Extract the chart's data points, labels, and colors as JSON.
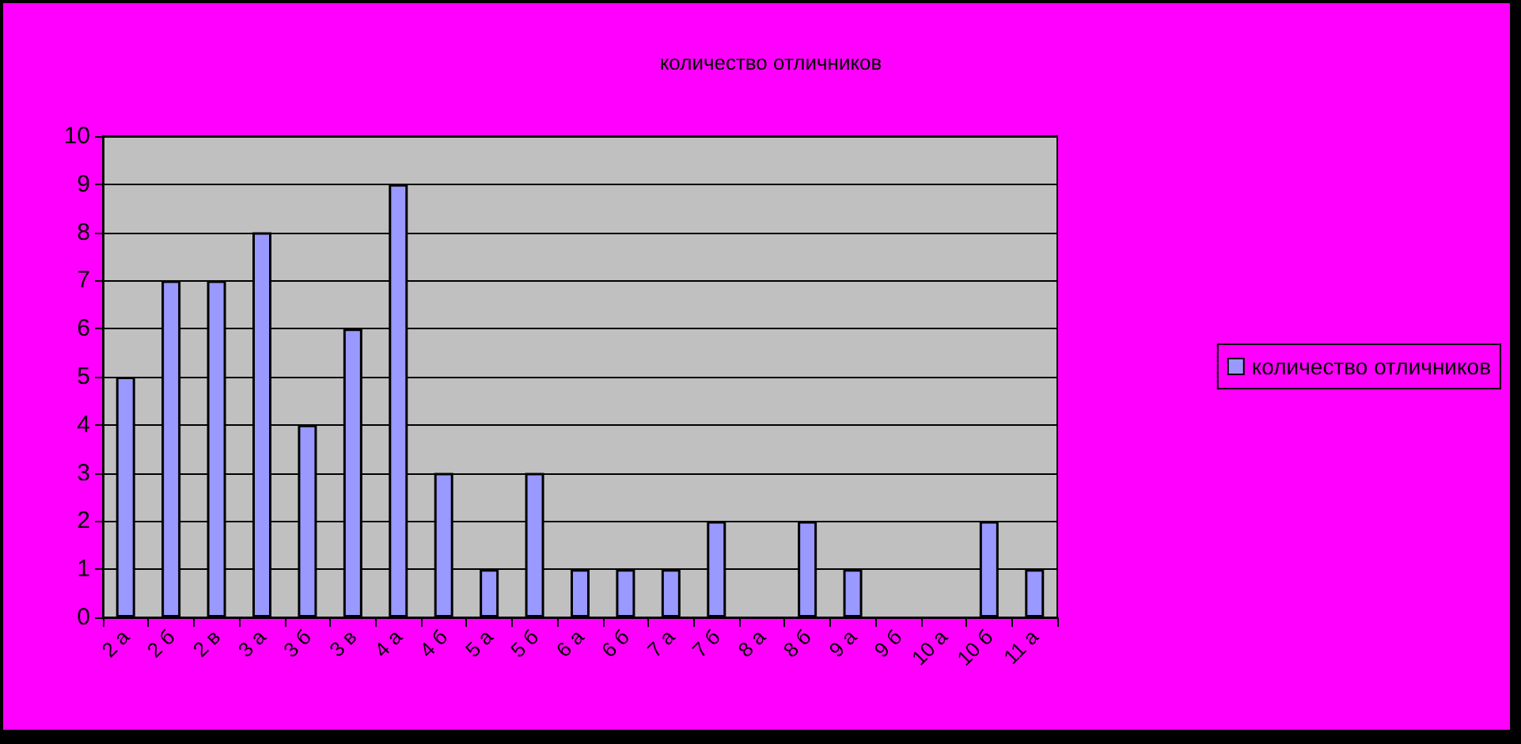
{
  "chart_data": {
    "type": "bar",
    "title": "количество отличников",
    "categories": [
      "2 а",
      "2 б",
      "2 в",
      "3 а",
      "3 б",
      "3 в",
      "4 а",
      "4 б",
      "5 а",
      "5 б",
      "6 а",
      "6 б",
      "7 а",
      "7 б",
      "8 а",
      "8 б",
      "9 а",
      "9 б",
      "10 а",
      "10 б",
      "11 а"
    ],
    "series": [
      {
        "name": "количество отличников",
        "color": "#9999ff",
        "values": [
          5,
          7,
          7,
          8,
          4,
          6,
          9,
          3,
          1,
          3,
          1,
          1,
          1,
          2,
          null,
          2,
          1,
          null,
          null,
          2,
          1
        ]
      }
    ],
    "ylim": [
      0,
      10
    ],
    "yticks": [
      0,
      1,
      2,
      3,
      4,
      5,
      6,
      7,
      8,
      9,
      10
    ],
    "grid": "y",
    "legend": "right"
  }
}
